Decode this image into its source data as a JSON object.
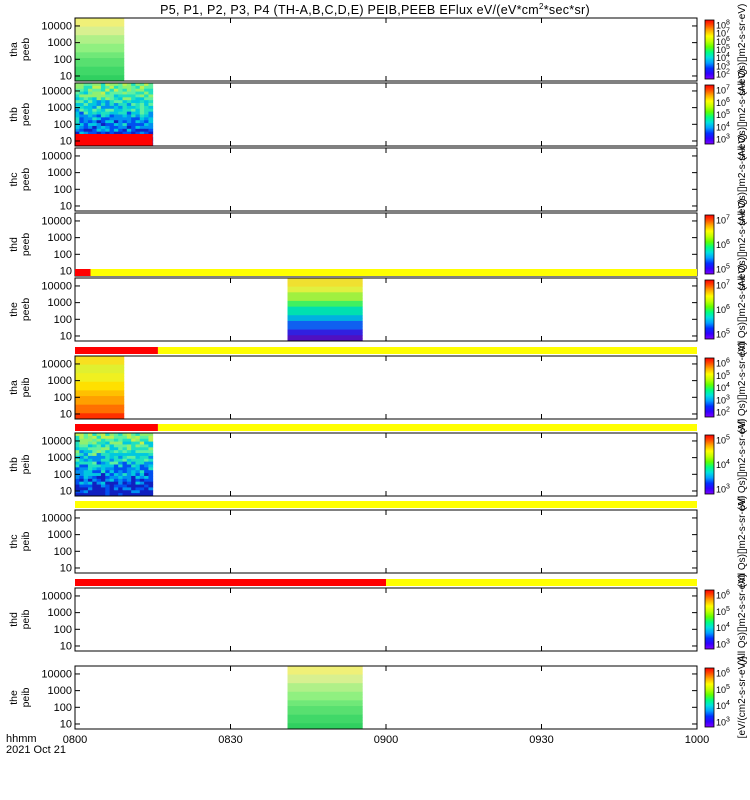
{
  "chart_data": {
    "type": "heatmap",
    "title": "P5, P1, P2, P3, P4 (TH-A,B,C,D,E) PEIB,PEEB EFlux eV/(eV*cm^2*sec*sr)",
    "title_parts": {
      "main": "P5, P1, P2, P3, P4 (TH-A,B,C,D,E) PEIB,PEEB EFlux eV/(eV*cm",
      "sup": "2",
      "tail": "*sec*sr)"
    },
    "x_axis": {
      "label_top": "hhmm",
      "label_bottom": "2021 Oct 21",
      "range_minutes": [
        480,
        600
      ],
      "ticks": [
        {
          "label": "0800",
          "minute": 480
        },
        {
          "label": "0830",
          "minute": 510
        },
        {
          "label": "0900",
          "minute": 540
        },
        {
          "label": "0930",
          "minute": 570
        },
        {
          "label": "1000",
          "minute": 600
        }
      ]
    },
    "y_axis": {
      "scale": "log",
      "range": [
        5,
        30000
      ],
      "ticks": [
        {
          "label": "10",
          "value": 10
        },
        {
          "label": "100",
          "value": 100
        },
        {
          "label": "1000",
          "value": 1000
        },
        {
          "label": "10000",
          "value": 10000
        }
      ]
    },
    "panels": [
      {
        "probe": "tha",
        "instrument": "peeb",
        "data_start": 480,
        "data_end": 489.5,
        "style": "flat",
        "fill": "#6be070",
        "colorbar": [
          "10",
          "10",
          "10",
          "10",
          "10",
          "10",
          "10"
        ],
        "cb_pow": [
          "8",
          "7",
          "6",
          "5",
          "4",
          "3",
          "2"
        ],
        "cb_label": "(All Qs)[]m2-s-sr-eV)",
        "mode_bar": null
      },
      {
        "probe": "thb",
        "instrument": "peeb",
        "data_start": 480,
        "data_end": 495,
        "style": "noisy",
        "fill": "#3fd0d0",
        "low_red": true,
        "colorbar": [
          "10",
          "10",
          "10",
          "10",
          "10"
        ],
        "cb_pow": [
          "7",
          "6",
          "5",
          "4",
          "3"
        ],
        "cb_label": "(All Qs)[]m2-s-sr-eV)",
        "mode_bar": null
      },
      {
        "probe": "thc",
        "instrument": "peeb",
        "data_start": null,
        "data_end": null,
        "style": "empty",
        "colorbar": [],
        "cb_pow": [],
        "cb_label": "(All Qs)[]m2-s-sr-eV)",
        "mode_bar": null
      },
      {
        "probe": "thd",
        "instrument": "peeb",
        "data_start": null,
        "data_end": null,
        "style": "empty",
        "colorbar": [
          "10",
          "10",
          "10"
        ],
        "cb_pow": [
          "7",
          "6",
          "5"
        ],
        "cb_label": "(All Qs)[]m2-s-sr-eV)",
        "mode_bar": null
      },
      {
        "probe": "the",
        "instrument": "peeb",
        "data_start": 521,
        "data_end": 535.5,
        "style": "graded",
        "fill": "#4080e0",
        "colorbar": [
          "10",
          "10",
          "10"
        ],
        "cb_pow": [
          "7",
          "6",
          "5"
        ],
        "cb_label": "(All Qs)[]m2-s-sr-eV)",
        "mode_bar": {
          "red_end": 483,
          "yellow_end": 600
        }
      },
      {
        "probe": "tha",
        "instrument": "peib",
        "data_start": 480,
        "data_end": 489.5,
        "style": "warm",
        "fill": "#f0d020",
        "colorbar": [
          "10",
          "10",
          "10",
          "10",
          "10"
        ],
        "cb_pow": [
          "6",
          "5",
          "4",
          "3",
          "2"
        ],
        "cb_label": "(All Qs)[]m2-s-sr-eV)",
        "mode_bar": {
          "red_end": 496,
          "yellow_end": 600
        }
      },
      {
        "probe": "thb",
        "instrument": "peib",
        "data_start": 480,
        "data_end": 495,
        "style": "noisy",
        "fill": "#40d0e0",
        "colorbar": [
          "10",
          "10",
          "10"
        ],
        "cb_pow": [
          "5",
          "4",
          "3"
        ],
        "cb_label": "(All Qs)[]m2-s-sr-eV)",
        "mode_bar": {
          "red_end": 496,
          "yellow_end": 600
        }
      },
      {
        "probe": "thc",
        "instrument": "peib",
        "data_start": null,
        "data_end": null,
        "style": "empty",
        "colorbar": [],
        "cb_pow": [],
        "cb_label": "(All Qs)[]m2-s-sr-eV)",
        "mode_bar": {
          "red_end": 480,
          "yellow_end": 600
        }
      },
      {
        "probe": "thd",
        "instrument": "peib",
        "data_start": null,
        "data_end": null,
        "style": "empty",
        "colorbar": [
          "10",
          "10",
          "10",
          "10"
        ],
        "cb_pow": [
          "6",
          "5",
          "4",
          "3"
        ],
        "cb_label": "(All Qs)[]m2-s-sr-eV)",
        "mode_bar": {
          "red_end": 540,
          "yellow_end": 600
        }
      },
      {
        "probe": "the",
        "instrument": "peib",
        "data_start": 521,
        "data_end": 535.5,
        "style": "flat",
        "fill": "#5ee070",
        "colorbar": [
          "10",
          "10",
          "10",
          "10"
        ],
        "cb_pow": [
          "6",
          "5",
          "4",
          "3"
        ],
        "cb_label": "[eV/(cm2-s-sr-eV)]",
        "mode_bar": null
      }
    ],
    "colors": {
      "mode_red": "#ff0000",
      "mode_yellow": "#ffff00"
    }
  }
}
